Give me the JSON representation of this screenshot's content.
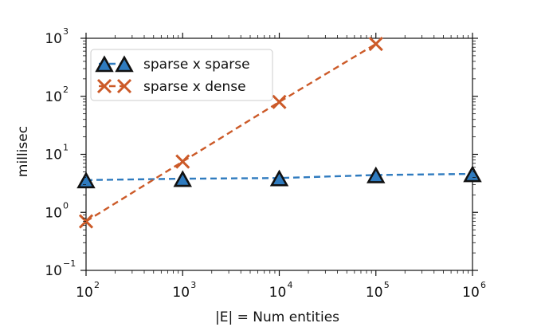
{
  "chart_data": {
    "type": "line",
    "title": "",
    "xlabel": "|E| = Num entities",
    "ylabel": "millisec",
    "xscale": "log",
    "yscale": "log",
    "xlim": [
      100,
      1000000
    ],
    "ylim": [
      0.1,
      1000
    ],
    "x_ticks": [
      {
        "base": "10",
        "exp": "2"
      },
      {
        "base": "10",
        "exp": "3"
      },
      {
        "base": "10",
        "exp": "4"
      },
      {
        "base": "10",
        "exp": "5"
      },
      {
        "base": "10",
        "exp": "6"
      }
    ],
    "y_ticks": [
      {
        "base": "10",
        "exp": "−1"
      },
      {
        "base": "10",
        "exp": "0"
      },
      {
        "base": "10",
        "exp": "1"
      },
      {
        "base": "10",
        "exp": "2"
      },
      {
        "base": "10",
        "exp": "3"
      }
    ],
    "legend_position": "top-left",
    "grid": false,
    "series": [
      {
        "name": "sparse x sparse",
        "marker": "triangle",
        "color": "#2f7bbf",
        "x": [
          100,
          1000,
          10000,
          100000,
          1000000
        ],
        "y": [
          3.6,
          3.8,
          3.9,
          4.4,
          4.6
        ]
      },
      {
        "name": "sparse x dense",
        "marker": "x",
        "color": "#cc5a28",
        "x": [
          100,
          1000,
          10000,
          100000
        ],
        "y": [
          0.7,
          7.5,
          80,
          800
        ]
      }
    ]
  }
}
